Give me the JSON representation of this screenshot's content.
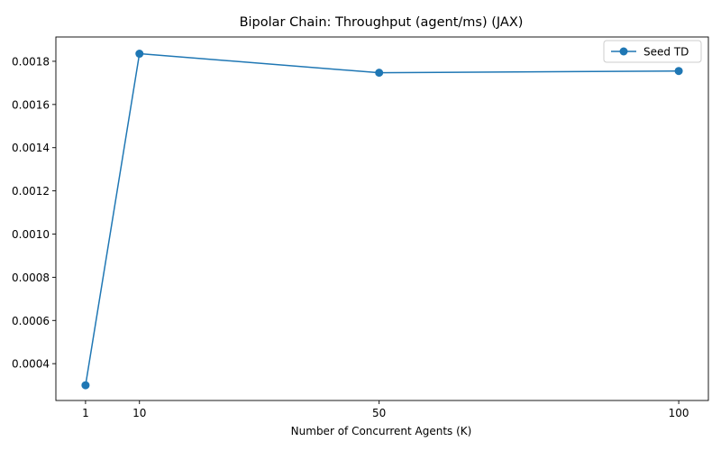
{
  "chart_data": {
    "type": "line",
    "title": "Bipolar Chain: Throughput (agent/ms) (JAX)",
    "xlabel": "Number of Concurrent Agents (K)",
    "ylabel": "",
    "x": [
      1,
      10,
      50,
      100
    ],
    "x_ticks": [
      1,
      10,
      50,
      100
    ],
    "y_ticks": [
      0.0004,
      0.0006,
      0.0008,
      0.001,
      0.0012,
      0.0014,
      0.0016,
      0.0018
    ],
    "y_tick_labels": [
      "0.0004",
      "0.0006",
      "0.0008",
      "0.0010",
      "0.0012",
      "0.0014",
      "0.0016",
      "0.0018"
    ],
    "xlim": [
      -3.95,
      104.95
    ],
    "ylim": [
      0.0002295,
      0.0019125
    ],
    "series": [
      {
        "name": "Seed TD",
        "color": "#1f77b4",
        "marker": "circle",
        "values": [
          0.0003,
          0.001835,
          0.001747,
          0.001755
        ]
      }
    ],
    "legend": {
      "position": "top-right"
    },
    "grid": false
  }
}
